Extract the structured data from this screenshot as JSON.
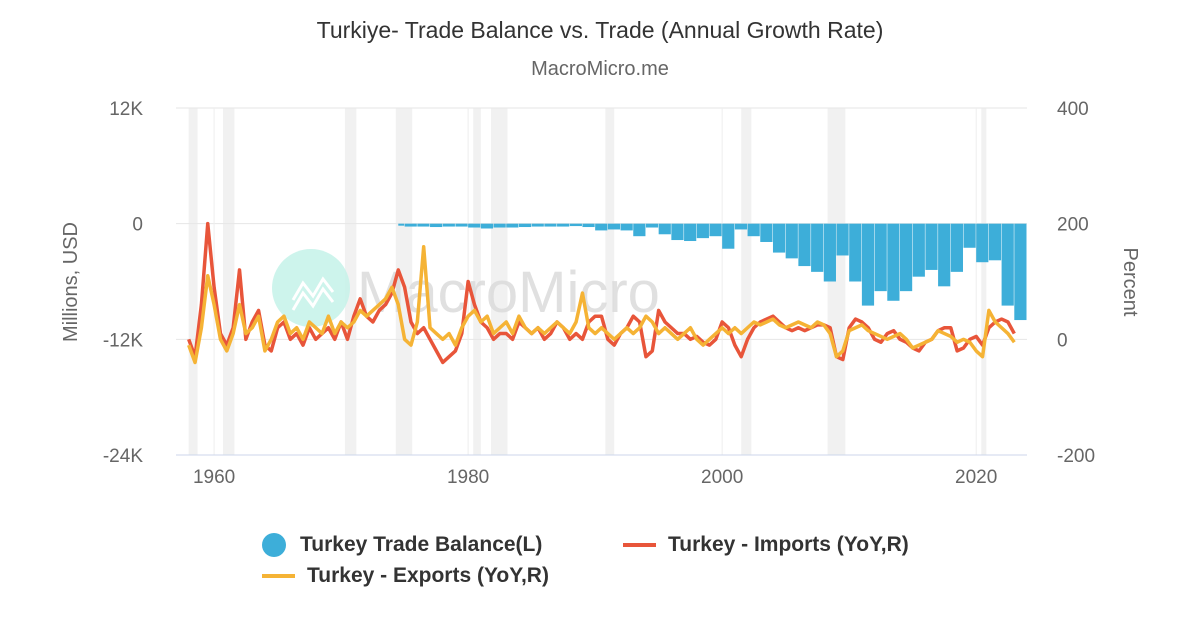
{
  "chart_data": {
    "type": "bar+line",
    "title": "Turkiye- Trade Balance vs. Trade (Annual Growth Rate)",
    "subtitle": "MacroMicro.me",
    "watermark": "MacroMicro",
    "ylabel_left": "Millions, USD",
    "ylabel_right": "Percent",
    "ylim_left": [
      -24000,
      12000
    ],
    "ylim_right": [
      -200,
      400
    ],
    "xlim": [
      1957,
      2024
    ],
    "x_ticks": [
      1960,
      1980,
      2000,
      2020
    ],
    "y_left_ticks": [
      "12K",
      "0",
      "-12K",
      "-24K"
    ],
    "y_left_tick_values": [
      12000,
      0,
      -12000,
      -24000
    ],
    "y_right_ticks": [
      "400",
      "200",
      "0",
      "-200"
    ],
    "y_right_tick_values": [
      400,
      200,
      0,
      -200
    ],
    "grid": true,
    "legend_position": "bottom",
    "recession_bands": [
      [
        1958.0,
        1958.7
      ],
      [
        1960.7,
        1961.6
      ],
      [
        1970.3,
        1971.2
      ],
      [
        1974.3,
        1975.6
      ],
      [
        1980.4,
        1981.0
      ],
      [
        1981.8,
        1983.1
      ],
      [
        1990.8,
        1991.5
      ],
      [
        2001.5,
        2002.3
      ],
      [
        2008.3,
        2009.7
      ],
      [
        2020.4,
        2020.8
      ]
    ],
    "series": [
      {
        "name": "Turkey Trade Balance(L)",
        "type": "bar",
        "axis": "left",
        "color": "#3daed9",
        "x": [
          1974.5,
          1975,
          1976,
          1977,
          1978,
          1979,
          1980,
          1981,
          1982,
          1983,
          1984,
          1985,
          1986,
          1987,
          1988,
          1989,
          1990,
          1991,
          1992,
          1993,
          1994,
          1995,
          1996,
          1997,
          1998,
          1999,
          2000,
          2001,
          2002,
          2003,
          2004,
          2005,
          2006,
          2007,
          2008,
          2009,
          2010,
          2011,
          2012,
          2013,
          2014,
          2015,
          2016,
          2017,
          2018,
          2019,
          2020,
          2021,
          2022,
          2023
        ],
        "values": [
          -200,
          -300,
          -300,
          -350,
          -300,
          -300,
          -400,
          -500,
          -400,
          -400,
          -350,
          -300,
          -300,
          -300,
          -250,
          -350,
          -700,
          -600,
          -700,
          -1300,
          -400,
          -1100,
          -1700,
          -1800,
          -1500,
          -1300,
          -2600,
          -600,
          -1300,
          -1900,
          -3000,
          -3600,
          -4400,
          -5000,
          -6000,
          -3300,
          -6000,
          -8500,
          -7000,
          -8000,
          -7000,
          -5500,
          -4800,
          -6500,
          -5000,
          -2500,
          -4000,
          -3800,
          -8500,
          -10000
        ]
      },
      {
        "name": "Turkey - Imports (YoY,R)",
        "type": "line",
        "axis": "right",
        "color": "#e8553a",
        "values": [
          0,
          -30,
          60,
          200,
          90,
          10,
          -10,
          20,
          120,
          0,
          30,
          50,
          -10,
          -20,
          20,
          30,
          0,
          10,
          -10,
          20,
          0,
          10,
          20,
          0,
          30,
          0,
          40,
          70,
          40,
          30,
          50,
          60,
          80,
          120,
          90,
          30,
          10,
          20,
          0,
          -20,
          -40,
          -30,
          -20,
          10,
          100,
          60,
          30,
          20,
          0,
          10,
          10,
          0,
          30,
          20,
          10,
          20,
          0,
          10,
          30,
          20,
          0,
          10,
          0,
          30,
          40,
          40,
          0,
          -10,
          10,
          20,
          40,
          30,
          -30,
          -20,
          50,
          30,
          20,
          10,
          10,
          0,
          5,
          -5,
          -10,
          0,
          30,
          20,
          -10,
          -30,
          0,
          20,
          30,
          35,
          40,
          30,
          20,
          15,
          20,
          15,
          20,
          25,
          25,
          20,
          -30,
          -35,
          20,
          35,
          30,
          20,
          0,
          -5,
          10,
          15,
          0,
          -5,
          -15,
          -20,
          -5,
          0,
          15,
          20,
          20,
          -20,
          -15,
          0,
          5,
          -10,
          20,
          30,
          35,
          30,
          10
        ]
      },
      {
        "name": "Turkey - Exports (YoY,R)",
        "type": "line",
        "axis": "right",
        "color": "#f5b335",
        "values": [
          -10,
          -40,
          20,
          110,
          60,
          0,
          -20,
          10,
          60,
          10,
          20,
          40,
          -20,
          0,
          30,
          40,
          10,
          20,
          0,
          30,
          20,
          10,
          40,
          10,
          30,
          20,
          30,
          50,
          40,
          50,
          60,
          70,
          90,
          60,
          0,
          -10,
          30,
          160,
          20,
          10,
          0,
          10,
          -10,
          20,
          40,
          50,
          30,
          40,
          10,
          20,
          30,
          10,
          40,
          20,
          10,
          20,
          10,
          20,
          30,
          20,
          10,
          30,
          80,
          20,
          10,
          20,
          10,
          0,
          10,
          20,
          10,
          20,
          40,
          30,
          10,
          20,
          10,
          0,
          10,
          20,
          0,
          -10,
          0,
          10,
          20,
          10,
          20,
          10,
          20,
          30,
          25,
          30,
          35,
          25,
          20,
          25,
          30,
          25,
          20,
          30,
          25,
          10,
          -30,
          -20,
          15,
          20,
          25,
          15,
          10,
          5,
          0,
          5,
          10,
          0,
          -15,
          -10,
          -5,
          0,
          15,
          10,
          5,
          -5,
          0,
          -5,
          -20,
          -30,
          50,
          30,
          20,
          10,
          -5
        ]
      }
    ]
  },
  "legend": {
    "items": [
      "Turkey Trade Balance(L)",
      "Turkey - Imports (YoY,R)",
      "Turkey - Exports (YoY,R)"
    ]
  }
}
